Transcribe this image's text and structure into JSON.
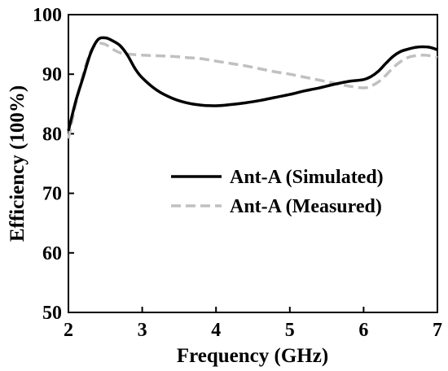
{
  "chart_data": {
    "type": "line",
    "title": "",
    "xlabel": "Frequency (GHz)",
    "ylabel": "Efficiency (100%)",
    "xlim": [
      2,
      7
    ],
    "ylim": [
      50,
      100
    ],
    "xticks": [
      2,
      3,
      4,
      5,
      6,
      7
    ],
    "yticks": [
      50,
      60,
      70,
      80,
      90,
      100
    ],
    "grid": false,
    "legend_position": "center-right",
    "series": [
      {
        "name": "Ant-A (Simulated)",
        "style": "solid",
        "color": "#000000",
        "x": [
          2.0,
          2.1,
          2.2,
          2.3,
          2.4,
          2.5,
          2.6,
          2.7,
          2.8,
          2.9,
          3.0,
          3.2,
          3.4,
          3.6,
          3.8,
          4.0,
          4.2,
          4.4,
          4.6,
          4.8,
          5.0,
          5.2,
          5.4,
          5.6,
          5.8,
          6.0,
          6.1,
          6.2,
          6.3,
          6.4,
          6.5,
          6.6,
          6.7,
          6.8,
          6.9,
          7.0
        ],
        "y": [
          80.5,
          85.5,
          89.5,
          93.5,
          95.8,
          96.1,
          95.6,
          94.8,
          93.2,
          91.0,
          89.4,
          87.3,
          86.0,
          85.2,
          84.8,
          84.7,
          84.9,
          85.2,
          85.6,
          86.1,
          86.6,
          87.2,
          87.7,
          88.3,
          88.8,
          89.1,
          89.6,
          90.5,
          91.8,
          93.0,
          93.8,
          94.2,
          94.5,
          94.6,
          94.5,
          94.1
        ]
      },
      {
        "name": "Ant-A (Measured)",
        "style": "dashed",
        "color": "#c0c0c0",
        "x": [
          2.0,
          2.1,
          2.2,
          2.3,
          2.4,
          2.5,
          2.6,
          2.7,
          2.8,
          3.0,
          3.2,
          3.4,
          3.6,
          3.8,
          4.0,
          4.2,
          4.4,
          4.6,
          4.8,
          5.0,
          5.2,
          5.4,
          5.6,
          5.8,
          6.0,
          6.1,
          6.2,
          6.3,
          6.4,
          6.5,
          6.6,
          6.7,
          6.8,
          6.9,
          7.0
        ],
        "y": [
          79.2,
          85.0,
          90.0,
          93.8,
          95.1,
          95.0,
          94.2,
          93.6,
          93.4,
          93.2,
          93.1,
          93.0,
          92.8,
          92.6,
          92.2,
          91.8,
          91.4,
          90.9,
          90.4,
          90.0,
          89.5,
          89.0,
          88.5,
          88.0,
          87.7,
          88.0,
          88.7,
          89.8,
          91.1,
          92.1,
          92.8,
          93.1,
          93.2,
          93.1,
          92.8
        ]
      }
    ]
  }
}
